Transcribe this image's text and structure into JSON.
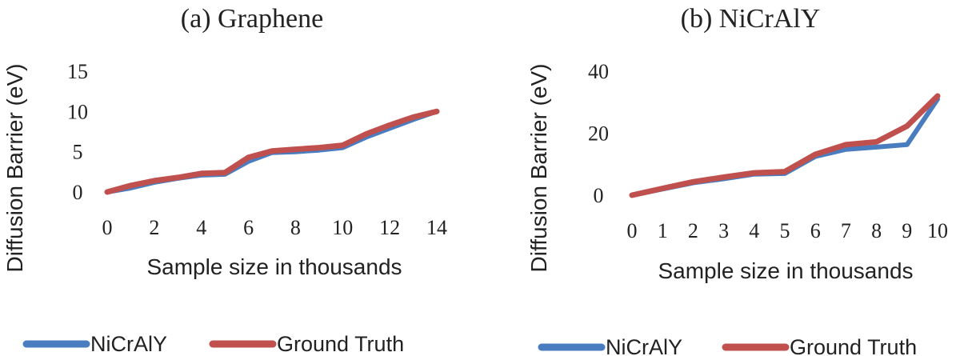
{
  "chart_data": [
    {
      "type": "line",
      "title": "(a) Graphene",
      "xlabel": "Sample size in thousands",
      "ylabel": "Diffusion Barrier (eV)",
      "xlim": [
        0,
        14
      ],
      "ylim": [
        0,
        15
      ],
      "xticks": [
        "0",
        "2",
        "4",
        "6",
        "8",
        "10",
        "12",
        "14"
      ],
      "yticks": [
        "0",
        "5",
        "10",
        "15"
      ],
      "x": [
        0,
        1,
        2,
        3,
        4,
        5,
        6,
        7,
        8,
        9,
        10,
        11,
        12,
        13,
        14
      ],
      "series": [
        {
          "name": "NiCrAlY",
          "color": "#4a7dbf",
          "values": [
            0,
            0.5,
            1.2,
            1.7,
            2.1,
            2.2,
            3.8,
            4.9,
            5.0,
            5.2,
            5.5,
            6.8,
            7.9,
            9.0,
            10.0
          ]
        },
        {
          "name": "Ground Truth",
          "color": "#c0504d",
          "values": [
            0,
            0.8,
            1.4,
            1.8,
            2.3,
            2.4,
            4.3,
            5.1,
            5.3,
            5.5,
            5.8,
            7.2,
            8.3,
            9.3,
            10.0
          ]
        }
      ],
      "legend": "bottom"
    },
    {
      "type": "line",
      "title": "(b) NiCrAlY",
      "xlabel": "Sample size in thousands",
      "ylabel": "Diffusion Barrier (eV)",
      "xlim": [
        0,
        10
      ],
      "ylim": [
        0,
        40
      ],
      "xticks": [
        "0",
        "1",
        "2",
        "3",
        "4",
        "5",
        "6",
        "7",
        "8",
        "9",
        "10"
      ],
      "yticks": [
        "0",
        "20",
        "40"
      ],
      "x": [
        0,
        1,
        2,
        3,
        4,
        5,
        6,
        7,
        8,
        9,
        10
      ],
      "series": [
        {
          "name": "NiCrAlY",
          "color": "#4a7dbf",
          "values": [
            0,
            2,
            4,
            5.3,
            6.8,
            7,
            12.5,
            14.8,
            15.5,
            16.3,
            31
          ]
        },
        {
          "name": "Ground Truth",
          "color": "#c0504d",
          "values": [
            0,
            2.2,
            4.3,
            5.8,
            7.2,
            7.6,
            13.2,
            16.3,
            17.2,
            22.3,
            32
          ]
        }
      ],
      "legend": "bottom"
    }
  ]
}
